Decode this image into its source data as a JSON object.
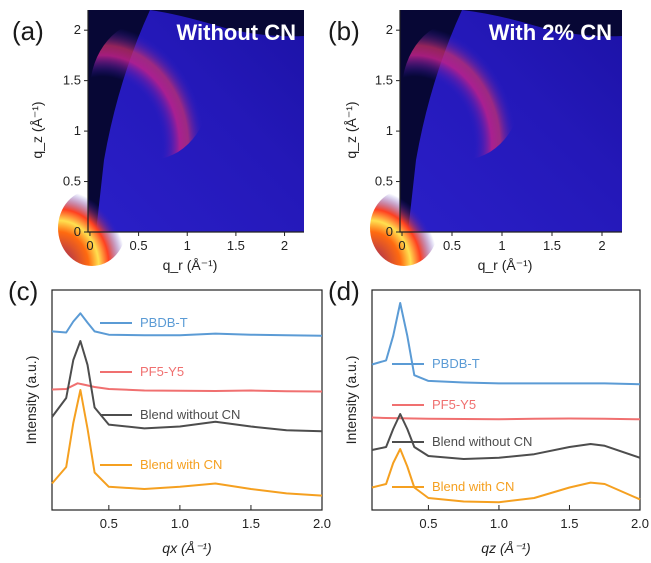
{
  "chart_data": [
    {
      "panel_label": "(a)",
      "type": "heatmap",
      "title": "Without CN",
      "xlabel": "q_r (Å⁻¹)",
      "ylabel": "q_z (Å⁻¹)",
      "xlim": [
        -0.02,
        2.2
      ],
      "ylim": [
        0,
        2.2
      ],
      "xticks": [
        0,
        0.5,
        1,
        1.5,
        2
      ],
      "yticks": [
        0,
        0.5,
        1,
        1.5,
        2
      ],
      "xtick_labels": [
        "0",
        "0.5",
        "1",
        "1.5",
        "2"
      ],
      "ytick_labels": [
        "0",
        "0.5",
        "1",
        "1.5",
        "2"
      ],
      "features": {
        "ring_q": 0.3,
        "arc_q": 1.65,
        "arc_peak_angle_deg": 72
      }
    },
    {
      "panel_label": "(b)",
      "type": "heatmap",
      "title": "With 2% CN",
      "xlabel": "q_r (Å⁻¹)",
      "ylabel": "q_z (Å⁻¹)",
      "xlim": [
        -0.02,
        2.2
      ],
      "ylim": [
        0,
        2.2
      ],
      "xticks": [
        0,
        0.5,
        1,
        1.5,
        2
      ],
      "yticks": [
        0,
        0.5,
        1,
        1.5,
        2
      ],
      "xtick_labels": [
        "0",
        "0.5",
        "1",
        "1.5",
        "2"
      ],
      "ytick_labels": [
        "0",
        "0.5",
        "1",
        "1.5",
        "2"
      ],
      "features": {
        "ring_q": 0.3,
        "arc_q": 1.65,
        "arc_peak_angle_deg": 72
      }
    },
    {
      "panel_label": "(c)",
      "type": "line",
      "xlabel": "qx (Å⁻¹)",
      "ylabel": "Intensity (a.u.)",
      "xlim": [
        0.1,
        2.0
      ],
      "xticks": [
        0.5,
        1.0,
        1.5,
        2.0
      ],
      "xtick_labels": [
        "0.5",
        "1.0",
        "1.5",
        "2.0"
      ],
      "series": [
        {
          "name": "PBDB-T",
          "color": "#5b9bd5",
          "x": [
            0.1,
            0.2,
            0.25,
            0.3,
            0.35,
            0.4,
            0.5,
            0.75,
            1.0,
            1.25,
            1.5,
            1.75,
            2.0
          ],
          "y": [
            0.12,
            0.1,
            0.3,
            0.45,
            0.28,
            0.12,
            0.06,
            0.05,
            0.05,
            0.08,
            0.06,
            0.05,
            0.04
          ]
        },
        {
          "name": "PF5-Y5",
          "color": "#f07070",
          "x": [
            0.1,
            0.2,
            0.28,
            0.32,
            0.4,
            0.5,
            0.75,
            1.0,
            1.25,
            1.5,
            1.75,
            2.0
          ],
          "y": [
            0.1,
            0.12,
            0.35,
            0.3,
            0.2,
            0.12,
            0.06,
            0.05,
            0.04,
            0.06,
            0.03,
            0.02
          ]
        },
        {
          "name": "Blend without CN",
          "color": "#4d4d4d",
          "x": [
            0.1,
            0.2,
            0.25,
            0.3,
            0.35,
            0.4,
            0.5,
            0.75,
            1.0,
            1.25,
            1.5,
            1.75,
            2.0
          ],
          "y": [
            0.2,
            0.4,
            0.8,
            1.0,
            0.75,
            0.3,
            0.12,
            0.08,
            0.1,
            0.15,
            0.1,
            0.06,
            0.05
          ]
        },
        {
          "name": "Blend with CN",
          "color": "#f5a020",
          "x": [
            0.1,
            0.2,
            0.25,
            0.3,
            0.35,
            0.4,
            0.5,
            0.75,
            1.0,
            1.25,
            1.5,
            1.75,
            2.0
          ],
          "y": [
            0.15,
            0.3,
            0.7,
            1.0,
            0.65,
            0.25,
            0.12,
            0.1,
            0.12,
            0.15,
            0.1,
            0.06,
            0.04
          ]
        }
      ]
    },
    {
      "panel_label": "(d)",
      "type": "line",
      "xlabel": "qz (Å⁻¹)",
      "ylabel": "Intensity (a.u.)",
      "xlim": [
        0.1,
        2.0
      ],
      "xticks": [
        0.5,
        1.0,
        1.5,
        2.0
      ],
      "xtick_labels": [
        "0.5",
        "1.0",
        "1.5",
        "2.0"
      ],
      "series": [
        {
          "name": "PBDB-T",
          "color": "#5b9bd5",
          "x": [
            0.1,
            0.2,
            0.25,
            0.3,
            0.35,
            0.4,
            0.5,
            0.75,
            1.0,
            1.25,
            1.5,
            1.75,
            2.0
          ],
          "y": [
            0.25,
            0.3,
            0.6,
            1.0,
            0.6,
            0.12,
            0.05,
            0.03,
            0.02,
            0.02,
            0.02,
            0.02,
            0.01
          ]
        },
        {
          "name": "PF5-Y5",
          "color": "#f07070",
          "x": [
            0.1,
            0.2,
            0.3,
            0.5,
            0.75,
            1.0,
            1.25,
            1.5,
            1.75,
            2.0
          ],
          "y": [
            0.1,
            0.08,
            0.07,
            0.05,
            0.04,
            0.03,
            0.05,
            0.06,
            0.05,
            0.03
          ]
        },
        {
          "name": "Blend without CN",
          "color": "#4d4d4d",
          "x": [
            0.1,
            0.2,
            0.25,
            0.3,
            0.35,
            0.4,
            0.5,
            0.75,
            1.0,
            1.25,
            1.5,
            1.65,
            1.75,
            2.0
          ],
          "y": [
            0.25,
            0.3,
            0.6,
            0.85,
            0.6,
            0.3,
            0.15,
            0.1,
            0.12,
            0.18,
            0.3,
            0.35,
            0.32,
            0.12
          ]
        },
        {
          "name": "Blend with CN",
          "color": "#f5a020",
          "x": [
            0.1,
            0.2,
            0.25,
            0.3,
            0.35,
            0.4,
            0.5,
            0.75,
            1.0,
            1.25,
            1.5,
            1.65,
            1.75,
            2.0
          ],
          "y": [
            0.25,
            0.3,
            0.6,
            0.8,
            0.55,
            0.25,
            0.1,
            0.05,
            0.04,
            0.1,
            0.25,
            0.32,
            0.3,
            0.08
          ]
        }
      ]
    }
  ]
}
